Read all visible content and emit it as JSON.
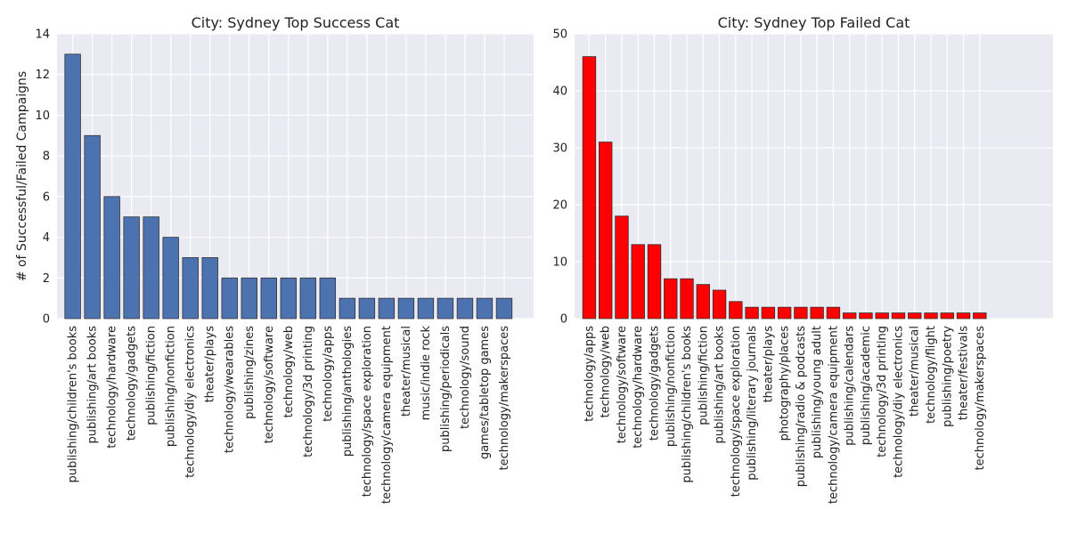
{
  "chart_data": [
    {
      "type": "bar",
      "title": "City: Sydney Top Success Cat",
      "xlabel": "",
      "ylabel": "# of Successful/Failed Campaigns",
      "ylim": [
        0,
        14
      ],
      "yticks": [
        0,
        2,
        4,
        6,
        8,
        10,
        12,
        14
      ],
      "xlim": [
        -0.8,
        23.5
      ],
      "bar_color": "#4c72b0",
      "grid": true,
      "categories": [
        "publishing/children's books",
        "publishing/art books",
        "technology/hardware",
        "technology/gadgets",
        "publishing/fiction",
        "publishing/nonfiction",
        "technology/diy electronics",
        "theater/plays",
        "technology/wearables",
        "publishing/zines",
        "technology/software",
        "technology/web",
        "technology/3d printing",
        "technology/apps",
        "publishing/anthologies",
        "technology/space exploration",
        "technology/camera equipment",
        "theater/musical",
        "music/indie rock",
        "publishing/periodicals",
        "technology/sound",
        "games/tabletop games",
        "technology/makerspaces"
      ],
      "values": [
        13,
        9,
        6,
        5,
        5,
        4,
        3,
        3,
        2,
        2,
        2,
        2,
        2,
        2,
        1,
        1,
        1,
        1,
        1,
        1,
        1,
        1,
        1
      ]
    },
    {
      "type": "bar",
      "title": "City: Sydney Top Failed Cat",
      "xlabel": "",
      "ylabel": "",
      "ylim": [
        0,
        50
      ],
      "yticks": [
        0,
        10,
        20,
        30,
        40,
        50
      ],
      "xlim": [
        -0.9,
        28.5
      ],
      "bar_color": "#ff0000",
      "grid": true,
      "categories": [
        "technology/apps",
        "technology/web",
        "technology/software",
        "technology/hardware",
        "technology/gadgets",
        "publishing/nonfiction",
        "publishing/children's books",
        "publishing/fiction",
        "publishing/art books",
        "technology/space exploration",
        "publishing/literary journals",
        "theater/plays",
        "photography/places",
        "publishing/radio & podcasts",
        "publishing/young adult",
        "technology/camera equipment",
        "publishing/calendars",
        "publishing/academic",
        "technology/3d printing",
        "technology/diy electronics",
        "theater/musical",
        "technology/flight",
        "publishing/poetry",
        "theater/festivals",
        "technology/makerspaces"
      ],
      "values": [
        46,
        31,
        18,
        13,
        13,
        7,
        7,
        6,
        5,
        3,
        2,
        2,
        2,
        2,
        2,
        2,
        1,
        1,
        1,
        1,
        1,
        1,
        1,
        1,
        1
      ]
    }
  ]
}
